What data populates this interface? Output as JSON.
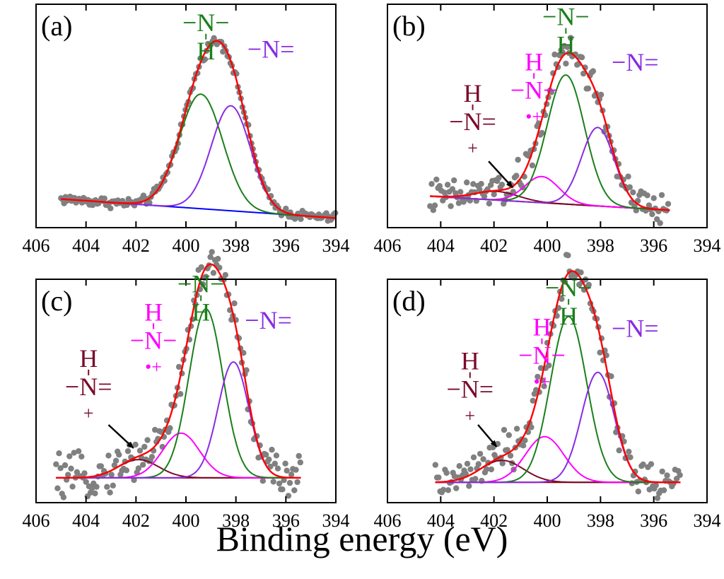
{
  "figure": {
    "xlabel": "Binding energy (eV)",
    "colors": {
      "envelope": "#ff0000",
      "amine": "#1a7f1a",
      "imine": "#8a2be2",
      "polaron": "#ff00ff",
      "bipolaron": "#7a0a2a",
      "background_a": "#0000ff",
      "background": "#8b0000",
      "data": "#808080",
      "arrow": "#000000"
    }
  },
  "chart_data": [
    {
      "type": "scatter",
      "panel": "(a)",
      "title": "",
      "xlabel": "Binding energy (eV)",
      "ylabel": "",
      "xlim": [
        406,
        394
      ],
      "ylim": [
        -0.05,
        1.12
      ],
      "xticks": [
        406,
        404,
        402,
        400,
        398,
        396,
        394
      ],
      "data_range": [
        405.0,
        394.0
      ],
      "noise": 0.012,
      "background": {
        "start": [
          405.0,
          0.1
        ],
        "end": [
          394.0,
          0.0
        ],
        "color": "#0000ff"
      },
      "components": [
        {
          "name": "-NH-",
          "center": 399.4,
          "height": 0.6,
          "fwhm": 2.05,
          "color": "#1a7f1a",
          "label": [
            "−N−",
            "H"
          ],
          "label_pos": [
            399.2,
            0.98
          ]
        },
        {
          "name": "-N=",
          "center": 398.2,
          "height": 0.55,
          "fwhm": 1.85,
          "color": "#8a2be2",
          "label": [
            "−N="
          ],
          "label_pos": [
            396.6,
            0.84
          ]
        }
      ]
    },
    {
      "type": "scatter",
      "panel": "(b)",
      "title": "",
      "xlabel": "Binding energy (eV)",
      "ylabel": "",
      "xlim": [
        406,
        394
      ],
      "ylim": [
        -0.1,
        1.18
      ],
      "xticks": [
        406,
        404,
        402,
        400,
        398,
        396,
        394
      ],
      "data_range": [
        404.4,
        395.4
      ],
      "noise": 0.045,
      "background": {
        "start": [
          404.4,
          0.08
        ],
        "end": [
          395.4,
          0.0
        ],
        "color": "#8b0000"
      },
      "components": [
        {
          "name": "-N+=",
          "center": 401.9,
          "height": 0.05,
          "fwhm": 1.9,
          "color": "#7a0a2a",
          "label": [
            "H",
            "−N=",
            "+"
          ],
          "label_pos": [
            402.8,
            0.46
          ],
          "arrow_to": [
            401.3,
            0.13
          ],
          "arrow_from": [
            402.2,
            0.28
          ]
        },
        {
          "name": "-NH•+-",
          "center": 400.2,
          "height": 0.15,
          "fwhm": 1.5,
          "color": "#ff00ff",
          "label": [
            "H",
            "−N−",
            "•+"
          ],
          "label_pos": [
            400.5,
            0.64
          ]
        },
        {
          "name": "-NH-",
          "center": 399.3,
          "height": 0.74,
          "fwhm": 1.65,
          "color": "#1a7f1a",
          "label": [
            "−N−",
            "H"
          ],
          "label_pos": [
            399.3,
            1.06
          ]
        },
        {
          "name": "-N=",
          "center": 398.1,
          "height": 0.45,
          "fwhm": 1.45,
          "color": "#8a2be2",
          "label": [
            "−N="
          ],
          "label_pos": [
            396.7,
            0.8
          ]
        }
      ]
    },
    {
      "type": "scatter",
      "panel": "(c)",
      "title": "",
      "xlabel": "Binding energy (eV)",
      "ylabel": "",
      "xlim": [
        406,
        394
      ],
      "ylim": [
        -0.15,
        1.2
      ],
      "xticks": [
        406,
        404,
        402,
        400,
        398,
        396,
        394
      ],
      "data_range": [
        405.2,
        395.4
      ],
      "noise": 0.055,
      "background": {
        "start": [
          405.2,
          0.0
        ],
        "end": [
          395.4,
          0.0
        ],
        "color": "#8b0000"
      },
      "components": [
        {
          "name": "-N+=",
          "center": 401.9,
          "height": 0.11,
          "fwhm": 1.9,
          "color": "#7a0a2a",
          "label": [
            "H",
            "−N=",
            "+"
          ],
          "label_pos": [
            403.9,
            0.5
          ],
          "arrow_to": [
            402.1,
            0.18
          ],
          "arrow_from": [
            403.1,
            0.32
          ]
        },
        {
          "name": "-NH•+-",
          "center": 400.2,
          "height": 0.27,
          "fwhm": 1.75,
          "color": "#ff00ff",
          "label": [
            "H",
            "−N−",
            "•+"
          ],
          "label_pos": [
            401.3,
            0.78
          ]
        },
        {
          "name": "-NH-",
          "center": 399.2,
          "height": 1.02,
          "fwhm": 1.6,
          "color": "#1a7f1a",
          "label": [
            "−N−",
            "H"
          ],
          "label_pos": [
            399.4,
            1.12
          ]
        },
        {
          "name": "-N=",
          "center": 398.1,
          "height": 0.7,
          "fwhm": 1.45,
          "color": "#8a2be2",
          "label": [
            "−N="
          ],
          "label_pos": [
            396.7,
            0.9
          ]
        }
      ]
    },
    {
      "type": "scatter",
      "panel": "(d)",
      "title": "",
      "xlabel": "Binding energy (eV)",
      "ylabel": "",
      "xlim": [
        406,
        394
      ],
      "ylim": [
        -0.12,
        1.2
      ],
      "xticks": [
        406,
        404,
        402,
        400,
        398,
        396,
        394
      ],
      "data_range": [
        404.2,
        395.0
      ],
      "noise": 0.05,
      "background": {
        "start": [
          404.2,
          0.0
        ],
        "end": [
          395.0,
          0.0
        ],
        "color": "#8b0000"
      },
      "components": [
        {
          "name": "-N+=",
          "center": 401.7,
          "height": 0.13,
          "fwhm": 1.9,
          "color": "#7a0a2a",
          "label": [
            "H",
            "−N=",
            "+"
          ],
          "label_pos": [
            402.9,
            0.5
          ],
          "arrow_to": [
            401.9,
            0.21
          ],
          "arrow_from": [
            402.6,
            0.34
          ]
        },
        {
          "name": "-NH•+-",
          "center": 400.1,
          "height": 0.27,
          "fwhm": 1.7,
          "color": "#ff00ff",
          "label": [
            "H",
            "−N−",
            "•+"
          ],
          "label_pos": [
            400.2,
            0.7
          ]
        },
        {
          "name": "-NH-",
          "center": 399.2,
          "height": 0.98,
          "fwhm": 1.6,
          "color": "#1a7f1a",
          "label": [
            "−N−",
            "H"
          ],
          "label_pos": [
            399.2,
            1.1
          ]
        },
        {
          "name": "-N=",
          "center": 398.1,
          "height": 0.65,
          "fwhm": 1.45,
          "color": "#8a2be2",
          "label": [
            "−N="
          ],
          "label_pos": [
            396.7,
            0.86
          ]
        }
      ]
    }
  ]
}
